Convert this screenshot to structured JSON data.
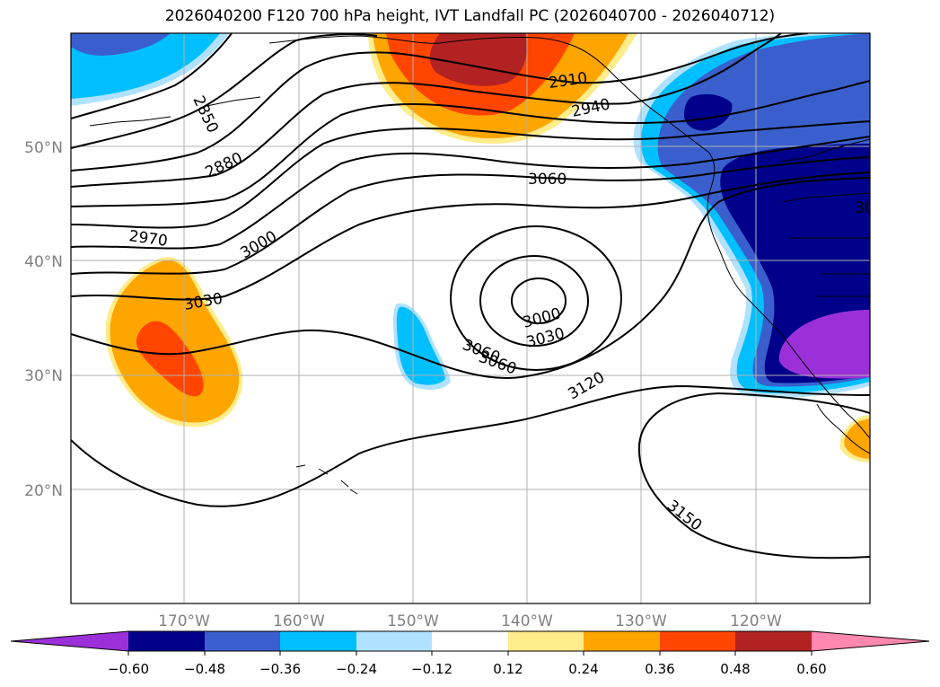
{
  "title": "2026040200 F120 700 hPa height, IVT Landfall PC (2026040700 - 2026040712)",
  "lat_labels": [
    "50°N",
    "40°N",
    "30°N",
    "20°N"
  ],
  "lon_labels": [
    "170°W",
    "160°W",
    "150°W",
    "140°W",
    "130°W",
    "120°W"
  ],
  "contour_labels": [
    "2850",
    "2880",
    "2910",
    "2940",
    "2970",
    "3000",
    "3030",
    "3060",
    "3060",
    "3000",
    "3030",
    "3060",
    "3120",
    "3150",
    "30"
  ],
  "colorbar": {
    "ticks": [
      "−0.60",
      "−0.48",
      "−0.36",
      "−0.24",
      "−0.12",
      "0.12",
      "0.24",
      "0.36",
      "0.48",
      "0.60"
    ],
    "colors": [
      "#9b30d9",
      "#00008b",
      "#3a5fcd",
      "#00bfff",
      "#b0e2ff",
      "#ffffff",
      "#ffec8b",
      "#ffa500",
      "#ff4500",
      "#b22222",
      "#ff88b0"
    ]
  },
  "colors": {
    "grid": "#b0b0b0",
    "axis_label": "#808080",
    "contour": "#000000"
  }
}
